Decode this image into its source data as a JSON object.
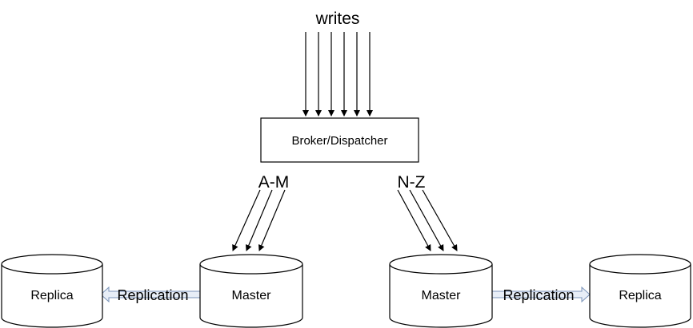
{
  "diagram": {
    "writes_label": "writes",
    "broker_label": "Broker/Dispatcher",
    "left_route_label": "A-M",
    "right_route_label": "N-Z",
    "left_master_label": "Master",
    "right_master_label": "Master",
    "left_replica_label": "Replica",
    "right_replica_label": "Replica",
    "left_replication_label": "Replication",
    "right_replication_label": "Replication"
  }
}
